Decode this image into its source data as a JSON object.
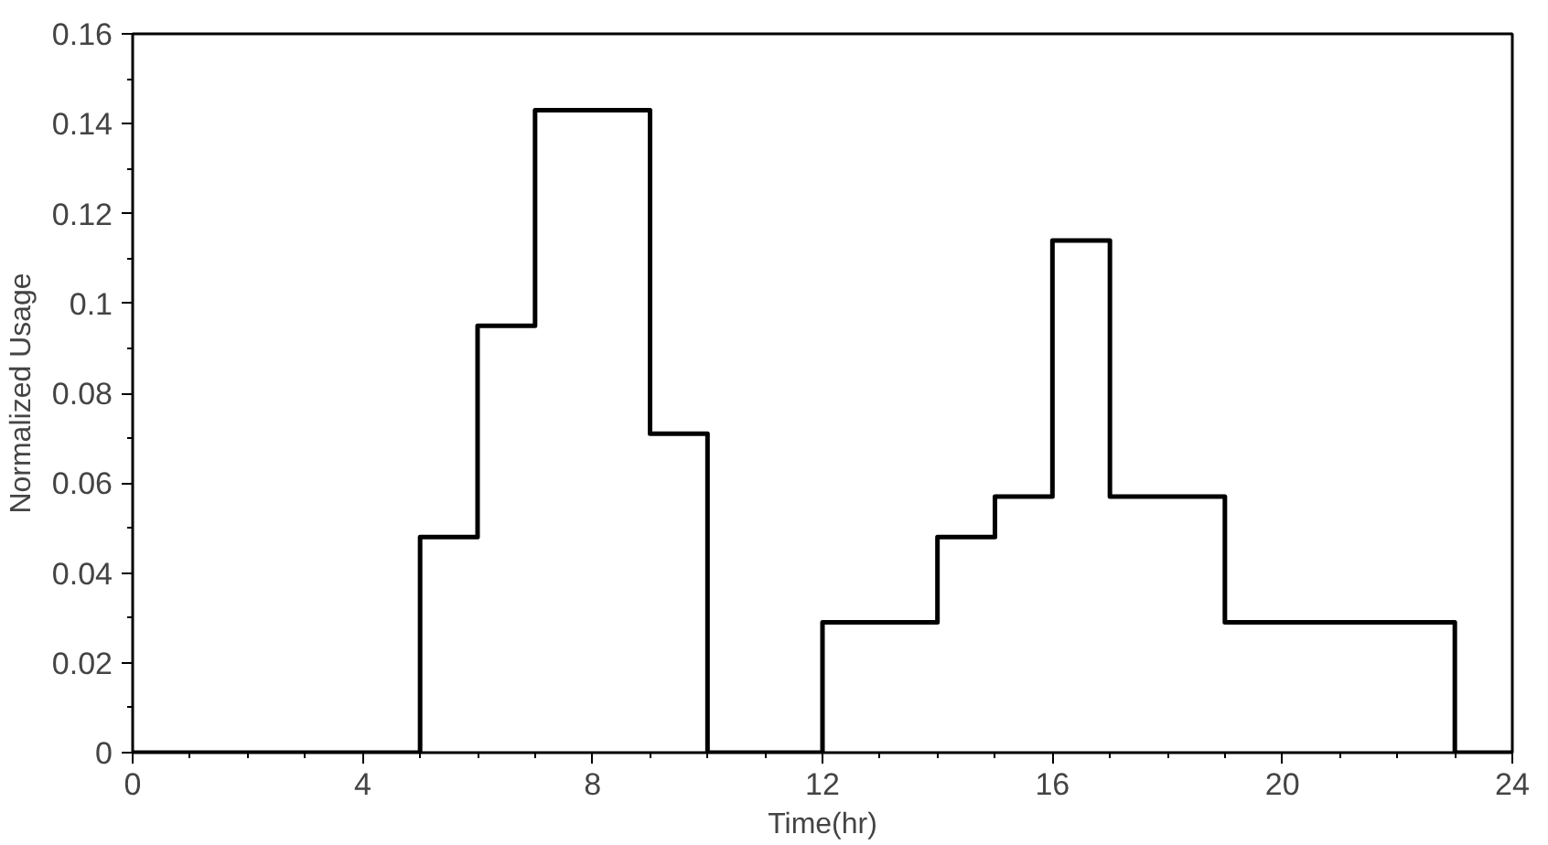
{
  "chart_data": {
    "type": "step",
    "xlabel": "Time(hr)",
    "ylabel": "Normalized Usage",
    "x": [
      0,
      5,
      6,
      7,
      9,
      10,
      12,
      14,
      15,
      16,
      17,
      19,
      23,
      24
    ],
    "values": [
      0,
      0.048,
      0.095,
      0.143,
      0.071,
      0,
      0.029,
      0.048,
      0.057,
      0.114,
      0.057,
      0.029,
      0,
      0
    ],
    "color": "#000000",
    "xlim": [
      0,
      24
    ],
    "ylim": [
      0,
      0.16
    ],
    "xticks": [
      0,
      4,
      8,
      12,
      16,
      20,
      24
    ],
    "yticks": [
      0,
      0.02,
      0.04,
      0.06,
      0.08,
      0.1,
      0.12,
      0.14,
      0.16
    ],
    "grid": false,
    "marker": "none",
    "line_style": "solid"
  }
}
